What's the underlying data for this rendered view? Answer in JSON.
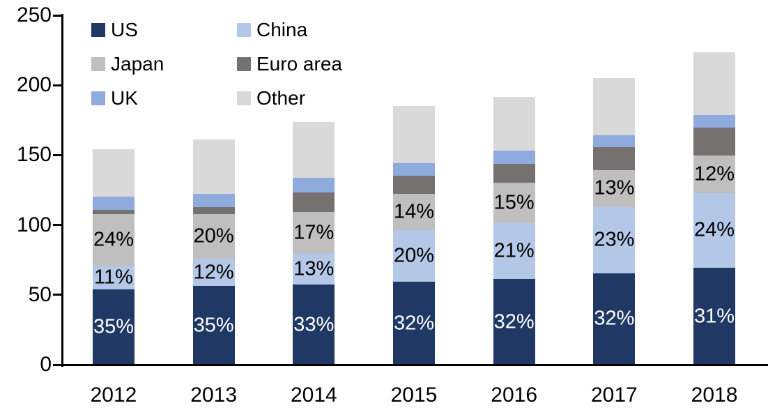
{
  "chart_data": {
    "type": "bar",
    "stacked": true,
    "categories": [
      "2012",
      "2013",
      "2014",
      "2015",
      "2016",
      "2017",
      "2018"
    ],
    "totals": [
      154,
      161,
      173.5,
      185,
      191.5,
      205,
      223.5
    ],
    "series": [
      {
        "name": "US",
        "color": "#1f3864",
        "pct": [
          35,
          35,
          33,
          32,
          32,
          32,
          31
        ],
        "values": [
          53.9,
          56.4,
          57.3,
          59.2,
          61.3,
          65.6,
          69.3
        ],
        "data_labels": [
          "35%",
          "35%",
          "33%",
          "32%",
          "32%",
          "32%",
          "31%"
        ],
        "label_color": "#ffffff"
      },
      {
        "name": "China",
        "color": "#b4c7e7",
        "pct": [
          11,
          12,
          13,
          20,
          21,
          23,
          24
        ],
        "values": [
          16.9,
          19.3,
          22.6,
          37.0,
          40.2,
          47.2,
          53.6
        ],
        "data_labels": [
          "11%",
          "12%",
          "13%",
          "20%",
          "21%",
          "23%",
          "24%"
        ],
        "label_color": "#000000"
      },
      {
        "name": "Japan",
        "color": "#bfbfbf",
        "pct": [
          24,
          20,
          17,
          14,
          15,
          13,
          12
        ],
        "values": [
          37.0,
          32.2,
          29.5,
          25.9,
          28.7,
          26.7,
          26.8
        ],
        "data_labels": [
          "24%",
          "20%",
          "17%",
          "14%",
          "15%",
          "13%",
          "12%"
        ],
        "label_color": "#000000"
      },
      {
        "name": "Euro area",
        "color": "#767171",
        "pct": [
          2,
          3,
          8,
          7,
          7,
          8,
          9
        ],
        "values": [
          3.1,
          4.8,
          13.9,
          13.0,
          13.4,
          16.4,
          20.1
        ],
        "data_labels": null,
        "label_color": null
      },
      {
        "name": "UK",
        "color": "#8faadc",
        "pct": [
          6,
          6,
          6,
          5,
          5,
          4,
          4
        ],
        "values": [
          9.2,
          9.7,
          10.4,
          9.3,
          9.6,
          8.2,
          8.9
        ],
        "data_labels": null,
        "label_color": null
      },
      {
        "name": "Other",
        "color": "#d9d9d9",
        "pct": [
          22,
          24,
          23,
          22,
          20,
          20,
          20
        ],
        "values": [
          33.9,
          38.6,
          39.9,
          40.7,
          38.3,
          41.0,
          44.7
        ],
        "data_labels": null,
        "label_color": null
      }
    ],
    "ylim": [
      0,
      250
    ],
    "yticks": [
      "0",
      "50",
      "100",
      "150",
      "200",
      "250"
    ],
    "grid": false,
    "legend": {
      "position": "top-left-inside",
      "columns": 2,
      "items": [
        "US",
        "China",
        "Japan",
        "Euro area",
        "UK",
        "Other"
      ]
    },
    "axis_color": "#000000"
  }
}
